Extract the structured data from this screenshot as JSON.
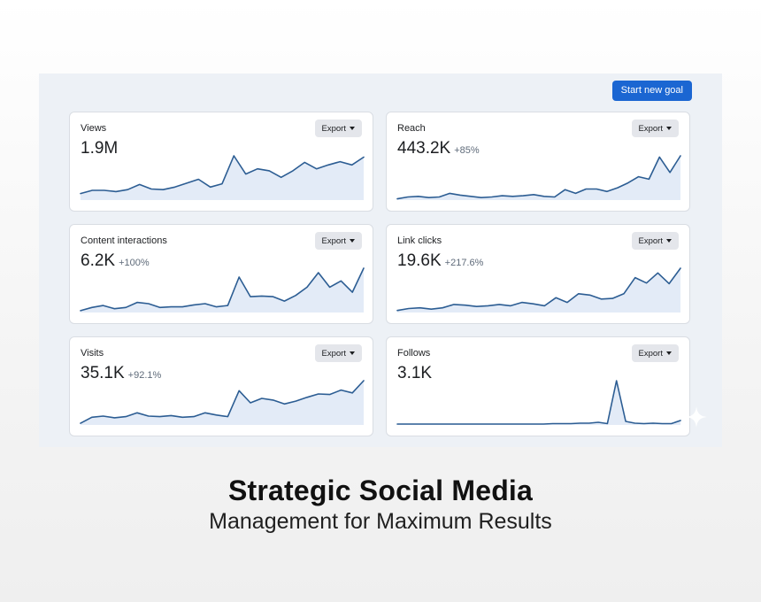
{
  "dashboard": {
    "start_goal_label": "Start new goal",
    "cards": [
      {
        "title": "Views",
        "value": "1.9M",
        "change": "",
        "export_label": "Export",
        "series": [
          10,
          15,
          15,
          13,
          16,
          24,
          17,
          16,
          20,
          26,
          32,
          20,
          25,
          68,
          40,
          48,
          45,
          35,
          45,
          58,
          48,
          54,
          59,
          54,
          66
        ]
      },
      {
        "title": "Reach",
        "value": "443.2K",
        "change": "+85%",
        "export_label": "Export",
        "series": [
          2,
          5,
          6,
          4,
          5,
          11,
          8,
          6,
          4,
          5,
          7,
          6,
          7,
          9,
          6,
          5,
          17,
          11,
          18,
          18,
          14,
          20,
          28,
          38,
          34,
          70,
          45,
          72
        ]
      },
      {
        "title": "Content interactions",
        "value": "6.2K",
        "change": "+100%",
        "export_label": "Export",
        "series": [
          3,
          8,
          11,
          6,
          8,
          16,
          14,
          8,
          9,
          9,
          12,
          14,
          9,
          11,
          56,
          25,
          26,
          25,
          18,
          27,
          40,
          63,
          40,
          50,
          32,
          70
        ]
      },
      {
        "title": "Link clicks",
        "value": "19.6K",
        "change": "+217.6%",
        "export_label": "Export",
        "series": [
          3,
          6,
          7,
          5,
          7,
          12,
          11,
          9,
          10,
          12,
          10,
          15,
          13,
          10,
          22,
          15,
          28,
          26,
          20,
          21,
          28,
          52,
          44,
          59,
          43,
          66
        ]
      },
      {
        "title": "Visits",
        "value": "35.1K",
        "change": "+92.1%",
        "export_label": "Export",
        "series": [
          3,
          14,
          16,
          13,
          15,
          22,
          16,
          15,
          17,
          14,
          15,
          22,
          18,
          15,
          62,
          40,
          48,
          45,
          38,
          43,
          50,
          56,
          55,
          63,
          58,
          80
        ]
      },
      {
        "title": "Follows",
        "value": "3.1K",
        "change": "",
        "export_label": "Export",
        "series": [
          2,
          2,
          2,
          2,
          2,
          2,
          2,
          2,
          2,
          2,
          2,
          2,
          2,
          2,
          2,
          2,
          2,
          3,
          3,
          3,
          4,
          4,
          6,
          3,
          100,
          8,
          4,
          3,
          4,
          3,
          3,
          10
        ]
      }
    ]
  },
  "headline": {
    "line1": "Strategic Social Media",
    "line2": "Management for Maximum Results"
  },
  "colors": {
    "accent": "#1b66d2",
    "line": "#2c5d93",
    "fill": "#e3ebf7",
    "panel": "#edf1f6"
  }
}
